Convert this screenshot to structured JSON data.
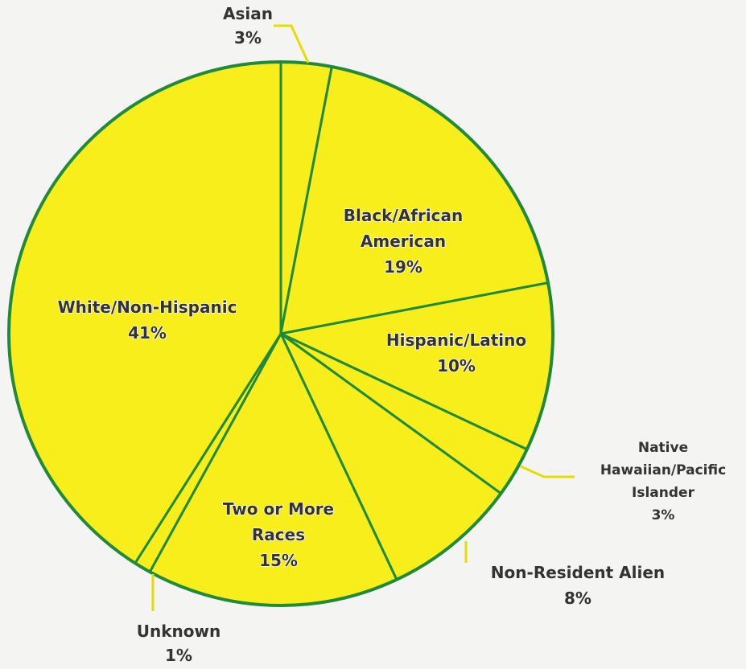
{
  "chart_data": {
    "type": "pie",
    "title": "",
    "slices": [
      {
        "label_lines": [
          "Asian",
          "3%"
        ],
        "value": 3
      },
      {
        "label_lines": [
          "Black/African",
          "American",
          "19%"
        ],
        "value": 19
      },
      {
        "label_lines": [
          "Hispanic/Latino",
          "10%"
        ],
        "value": 10
      },
      {
        "label_lines": [
          "Native",
          "Hawaiian/Pacific",
          "Islander",
          "3%"
        ],
        "value": 3
      },
      {
        "label_lines": [
          "Non-Resident Alien",
          "8%"
        ],
        "value": 8
      },
      {
        "label_lines": [
          "Two or More",
          "Races",
          "15%"
        ],
        "value": 15
      },
      {
        "label_lines": [
          "Unknown",
          "1%"
        ],
        "value": 1
      },
      {
        "label_lines": [
          "White/Non-Hispanic",
          "41%"
        ],
        "value": 41
      }
    ],
    "start_angle_deg": 0,
    "direction": "clockwise",
    "legend": "none",
    "colors": {
      "fill": "#f7ee1c",
      "stroke": "#1e8a3a",
      "leader": "#e6dc00",
      "label": "#333333"
    }
  }
}
